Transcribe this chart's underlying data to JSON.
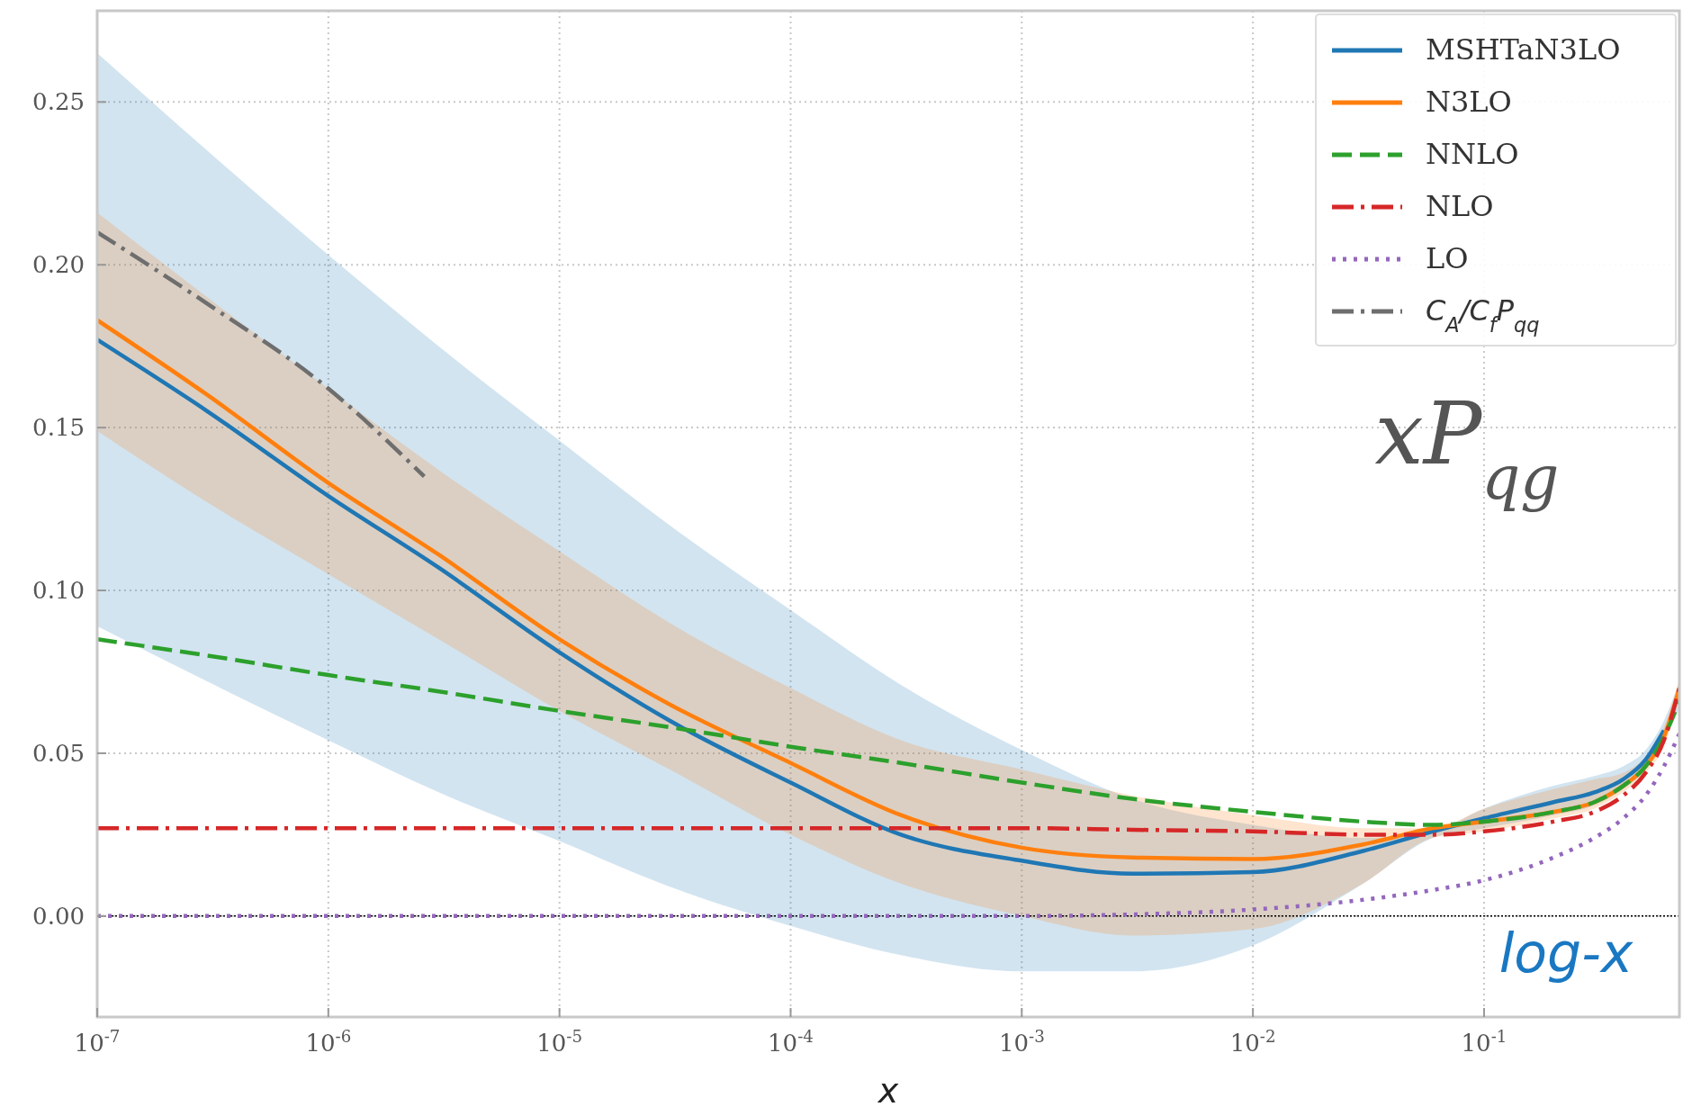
{
  "chart_data": {
    "type": "line",
    "xlabel": "x",
    "log": "x",
    "grid": true,
    "legend": "top right",
    "xlim": [
      1e-07,
      0.7
    ],
    "ylim": [
      -0.031,
      0.278
    ],
    "xticks": [
      {
        "value": 1e-07,
        "label": "10$^{-7}$"
      },
      {
        "value": 1e-06,
        "label": "10$^{-6}$"
      },
      {
        "value": 1e-05,
        "label": "10$^{-5}$"
      },
      {
        "value": 0.0001,
        "label": "10$^{-4}$"
      },
      {
        "value": 0.001,
        "label": "10$^{-3}$"
      },
      {
        "value": 0.01,
        "label": "10$^{-2}$"
      },
      {
        "value": 0.1,
        "label": "10$^{-1}$"
      }
    ],
    "yticks": [
      {
        "value": 0,
        "label": "0.00"
      },
      {
        "value": 0.05,
        "label": "0.05"
      },
      {
        "value": 0.1,
        "label": "0.10"
      },
      {
        "value": 0.15,
        "label": "0.15"
      },
      {
        "value": 0.2,
        "label": "0.20"
      },
      {
        "value": 0.25,
        "label": "0.25"
      }
    ],
    "x": [
      1e-07,
      3e-07,
      1e-06,
      3e-06,
      1e-05,
      3e-05,
      0.0001,
      0.0003,
      0.001,
      0.003,
      0.01,
      0.03,
      0.06,
      0.1,
      0.2,
      0.3,
      0.4,
      0.5,
      0.6,
      0.7
    ],
    "series": [
      {
        "name": "MSHTaN3LO",
        "color": "#1f77b4",
        "line_style": "solid",
        "values": [
          0.177,
          0.155,
          0.129,
          0.107,
          0.081,
          0.06,
          0.041,
          0.025,
          0.017,
          0.013,
          0.0135,
          0.02,
          0.026,
          0.03,
          0.035,
          0.038,
          0.042,
          0.048,
          0.057,
          null
        ],
        "lower": [
          0.089,
          0.072,
          0.054,
          0.038,
          0.023,
          0.009,
          -0.003,
          -0.012,
          -0.017,
          -0.017,
          -0.009,
          0.01,
          0.024,
          0.027,
          0.031,
          0.034,
          0.039,
          0.045,
          0.054,
          0.064
        ],
        "upper": [
          0.265,
          0.235,
          0.203,
          0.175,
          0.146,
          0.12,
          0.094,
          0.071,
          0.051,
          0.036,
          0.028,
          0.024,
          0.026,
          0.033,
          0.04,
          0.043,
          0.046,
          0.051,
          0.06,
          0.072
        ]
      },
      {
        "name": "N3LO",
        "color": "#ff7f0e",
        "line_style": "solid",
        "values": [
          0.183,
          0.16,
          0.133,
          0.111,
          0.085,
          0.065,
          0.047,
          0.031,
          0.021,
          0.018,
          0.0175,
          0.022,
          0.027,
          0.029,
          0.032,
          0.035,
          0.04,
          0.046,
          0.055,
          0.07
        ],
        "lower": [
          0.149,
          0.127,
          0.105,
          0.085,
          0.063,
          0.045,
          0.025,
          0.01,
          0.0,
          -0.006,
          -0.004,
          0.01,
          0.024,
          0.026,
          0.03,
          0.033,
          0.038,
          0.044,
          0.052,
          0.067
        ],
        "upper": [
          0.216,
          0.19,
          0.162,
          0.137,
          0.112,
          0.09,
          0.07,
          0.054,
          0.045,
          0.037,
          0.031,
          0.027,
          0.027,
          0.033,
          0.039,
          0.042,
          0.044,
          0.049,
          0.058,
          0.073
        ]
      },
      {
        "name": "NNLO",
        "color": "#2ca02c",
        "line_style": "dashed",
        "values": [
          0.085,
          0.08,
          0.074,
          0.069,
          0.063,
          0.058,
          0.052,
          0.047,
          0.041,
          0.036,
          0.032,
          0.029,
          0.028,
          0.029,
          0.032,
          0.035,
          0.04,
          0.046,
          0.055,
          0.066
        ]
      },
      {
        "name": "NLO",
        "color": "#d62728",
        "line_style": "dashdot",
        "values": [
          0.027,
          0.027,
          0.027,
          0.027,
          0.027,
          0.027,
          0.027,
          0.027,
          0.027,
          0.0265,
          0.026,
          0.025,
          0.025,
          0.026,
          0.029,
          0.032,
          0.037,
          0.044,
          0.054,
          0.07
        ]
      },
      {
        "name": "LO",
        "color": "#9467bd",
        "line_style": "dotted",
        "values": [
          0,
          0,
          0,
          0,
          0,
          0,
          0,
          0,
          0,
          0.0005,
          0.002,
          0.005,
          0.008,
          0.011,
          0.018,
          0.024,
          0.03,
          0.037,
          0.046,
          0.056
        ]
      },
      {
        "name": "C$_{A}$/C$_{f}$P$_{qq}$",
        "color": "#6e6e6e",
        "line_style": "dashdot",
        "x": [
          1e-07,
          3e-07,
          1e-06,
          2.6e-06
        ],
        "values": [
          0.21,
          0.188,
          0.162,
          0.135
        ]
      }
    ],
    "ref_lines": [
      {
        "axis": "y",
        "value": 0,
        "color": "#000000",
        "line_style": "dotted"
      }
    ],
    "annotations": [
      "xP$_{qg}$",
      "log-x"
    ]
  }
}
